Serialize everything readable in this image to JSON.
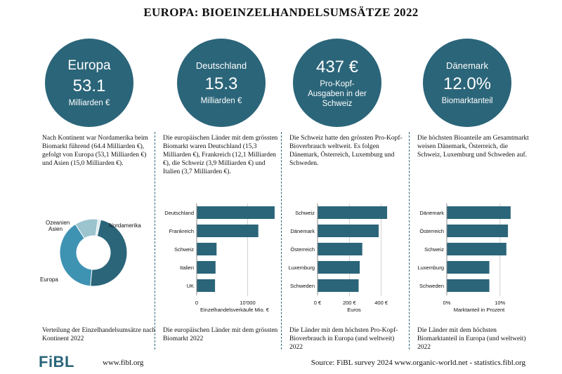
{
  "title": "EUROPA: BIOEINZELHANDELSUMSÄTZE 2022",
  "colors": {
    "primary": "#2b6579",
    "light": "#3e93b3",
    "pale": "#9cc4cf"
  },
  "kpis": [
    {
      "top": "Europa",
      "value": "53.1",
      "bottom": "Milliarden €"
    },
    {
      "top": "Deutschland",
      "value": "15.3",
      "bottom": "Milliarden €"
    },
    {
      "top": "437 €",
      "value": "",
      "bottom": "Pro-Kopf-Ausgaben in der Schweiz"
    },
    {
      "top": "Dänemark",
      "value": "12.0%",
      "bottom": "Biomarktanteil"
    }
  ],
  "descriptions": [
    "Nach Kontinent war Nordamerika beim Biomarkt führend (64.4 Milliarden €), gefolgt von Europa (53,1 Milliarden €) und Asien (15,0 Milliarden €).",
    "Die europäischen Länder mit dem grössten Biomarkt waren Deutschland (15,3 Milliarden €), Frankreich (12,1 Milliarden €), die Schweiz (3,9 Milliarden €) und Italien (3,7 Milliarden €).",
    "Die Schweiz hatte den grössten Pro-Kopf-Bioverbrauch weltweit. Es folgen Dänemark, Österreich, Luxemburg und Schweden.",
    "Die höchsten Bioanteile am Gesamtmarkt weisen Dänemark, Österreich, die Schweiz, Luxemburg und Schweden auf."
  ],
  "captions": [
    "Verteilung der Einzelhandelsumsätze nach Kontinent 2022",
    "Die europäischen  Länder mit dem grössten Biomarkt 2022",
    "Die Länder mit dem höchsten Pro-Kopf-Bioverbrauch in Europa (und weltweit) 2022",
    "Die Länder mit dem höchsten Biomarktanteil in Europa (und weltweit) 2022"
  ],
  "footer": {
    "logo": "FiBL",
    "website": "www.fibl.org",
    "source": "Source: FiBL survey 2024 www.organic-world.net - statistics.fibl.org"
  },
  "chart_data": [
    {
      "type": "pie",
      "donut": true,
      "categories": [
        "Nordamerika",
        "Europa",
        "Asien",
        "Ozeanien"
      ],
      "values": [
        64.4,
        53.1,
        15.0,
        1.8
      ],
      "colors": [
        "#2b6579",
        "#3e93b3",
        "#9cc4cf",
        "#dbe9ee"
      ]
    },
    {
      "type": "bar",
      "orientation": "horizontal",
      "categories": [
        "Deutschland",
        "Frankreich",
        "Schweiz",
        "Italien",
        "UK"
      ],
      "values": [
        15300,
        12100,
        3900,
        3700,
        3600
      ],
      "xlim": [
        0,
        16000
      ],
      "xticks": [
        0,
        10000
      ],
      "xtick_labels": [
        "0",
        "10'000"
      ],
      "xlabel": "Einzelhandelsverkäufe Mio. €",
      "grid": true
    },
    {
      "type": "bar",
      "orientation": "horizontal",
      "categories": [
        "Schweiz",
        "Dänemark",
        "Österreich",
        "Luxemburg",
        "Schweden"
      ],
      "values": [
        437,
        384,
        281,
        265,
        258
      ],
      "xlim": [
        0,
        450
      ],
      "xticks": [
        0,
        200,
        400
      ],
      "xtick_labels": [
        "0 €",
        "200 €",
        "400 €"
      ],
      "xlabel": "Euros",
      "grid": true
    },
    {
      "type": "bar",
      "orientation": "horizontal",
      "categories": [
        "Dänemark",
        "Österreich",
        "Schweiz",
        "Luxemburg",
        "Schweden"
      ],
      "values": [
        12.0,
        11.5,
        11.2,
        8.0,
        8.0
      ],
      "xlim": [
        0,
        14
      ],
      "xticks": [
        0,
        10
      ],
      "xtick_labels": [
        "0%",
        "10%"
      ],
      "xlabel": "Marktanteil in Prozent",
      "grid": true
    }
  ]
}
